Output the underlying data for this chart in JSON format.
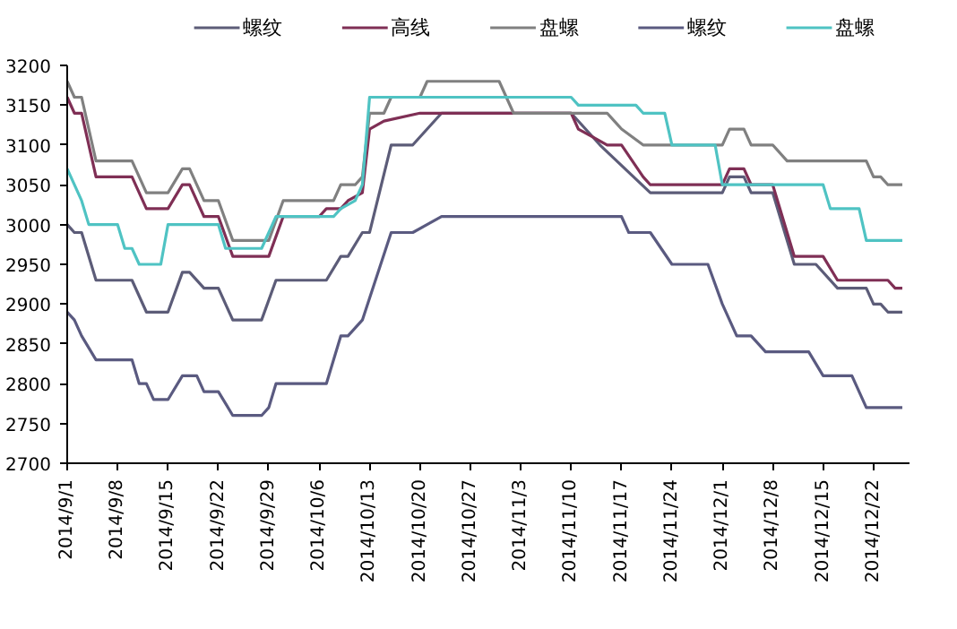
{
  "chart_data": {
    "type": "line",
    "series": [
      {
        "name": "螺纹",
        "color": "#5c5c78",
        "x": [
          "2014-09-01",
          "2014-09-02",
          "2014-09-03",
          "2014-09-05",
          "2014-09-10",
          "2014-09-12",
          "2014-09-15",
          "2014-09-17",
          "2014-09-18",
          "2014-09-20",
          "2014-09-22",
          "2014-09-24",
          "2014-09-28",
          "2014-09-30",
          "2014-10-07",
          "2014-10-09",
          "2014-10-10",
          "2014-10-12",
          "2014-10-13",
          "2014-10-16",
          "2014-10-19",
          "2014-10-23",
          "2014-11-10",
          "2014-11-12",
          "2014-11-14",
          "2014-11-21",
          "2014-12-01",
          "2014-12-02",
          "2014-12-04",
          "2014-12-05",
          "2014-12-08",
          "2014-12-11",
          "2014-12-14",
          "2014-12-17",
          "2014-12-21",
          "2014-12-22",
          "2014-12-23",
          "2014-12-24",
          "2014-12-26"
        ],
        "values": [
          3000,
          2990,
          2990,
          2930,
          2930,
          2890,
          2890,
          2940,
          2940,
          2920,
          2920,
          2880,
          2880,
          2930,
          2930,
          2960,
          2960,
          2990,
          2990,
          3100,
          3100,
          3140,
          3140,
          3120,
          3100,
          3040,
          3040,
          3060,
          3060,
          3040,
          3040,
          2950,
          2950,
          2920,
          2920,
          2900,
          2900,
          2890,
          2890
        ]
      },
      {
        "name": "高线",
        "color": "#7f2f55",
        "x": [
          "2014-09-01",
          "2014-09-02",
          "2014-09-03",
          "2014-09-05",
          "2014-09-10",
          "2014-09-12",
          "2014-09-15",
          "2014-09-17",
          "2014-09-18",
          "2014-09-20",
          "2014-09-22",
          "2014-09-24",
          "2014-09-29",
          "2014-10-01",
          "2014-10-06",
          "2014-10-07",
          "2014-10-09",
          "2014-10-10",
          "2014-10-12",
          "2014-10-13",
          "2014-10-15",
          "2014-10-20",
          "2014-11-10",
          "2014-11-11",
          "2014-11-13",
          "2014-11-15",
          "2014-11-17",
          "2014-11-20",
          "2014-11-21",
          "2014-12-01",
          "2014-12-02",
          "2014-12-04",
          "2014-12-05",
          "2014-12-08",
          "2014-12-11",
          "2014-12-15",
          "2014-12-17",
          "2014-12-24",
          "2014-12-25",
          "2014-12-26"
        ],
        "values": [
          3160,
          3140,
          3140,
          3060,
          3060,
          3020,
          3020,
          3050,
          3050,
          3010,
          3010,
          2960,
          2960,
          3010,
          3010,
          3020,
          3020,
          3030,
          3040,
          3120,
          3130,
          3140,
          3140,
          3120,
          3110,
          3100,
          3100,
          3060,
          3050,
          3050,
          3070,
          3070,
          3050,
          3050,
          2960,
          2960,
          2930,
          2930,
          2920,
          2920
        ]
      },
      {
        "name": "盘螺",
        "color": "#808080",
        "x": [
          "2014-09-01",
          "2014-09-02",
          "2014-09-03",
          "2014-09-05",
          "2014-09-10",
          "2014-09-12",
          "2014-09-15",
          "2014-09-17",
          "2014-09-18",
          "2014-09-20",
          "2014-09-22",
          "2014-09-24",
          "2014-09-29",
          "2014-10-01",
          "2014-10-08",
          "2014-10-09",
          "2014-10-11",
          "2014-10-12",
          "2014-10-13",
          "2014-10-15",
          "2014-10-16",
          "2014-10-20",
          "2014-10-21",
          "2014-10-31",
          "2014-11-02",
          "2014-11-15",
          "2014-11-16",
          "2014-11-17",
          "2014-11-20",
          "2014-12-01",
          "2014-12-02",
          "2014-12-04",
          "2014-12-05",
          "2014-12-08",
          "2014-12-10",
          "2014-12-21",
          "2014-12-22",
          "2014-12-23",
          "2014-12-24",
          "2014-12-26"
        ],
        "values": [
          3180,
          3160,
          3160,
          3080,
          3080,
          3040,
          3040,
          3070,
          3070,
          3030,
          3030,
          2980,
          2980,
          3030,
          3030,
          3050,
          3050,
          3060,
          3140,
          3140,
          3160,
          3160,
          3180,
          3180,
          3140,
          3140,
          3130,
          3120,
          3100,
          3100,
          3120,
          3120,
          3100,
          3100,
          3080,
          3080,
          3060,
          3060,
          3050,
          3050
        ]
      },
      {
        "name": "螺纹",
        "color": "#5a5a80",
        "x": [
          "2014-09-01",
          "2014-09-02",
          "2014-09-03",
          "2014-09-05",
          "2014-09-10",
          "2014-09-11",
          "2014-09-12",
          "2014-09-13",
          "2014-09-15",
          "2014-09-17",
          "2014-09-19",
          "2014-09-20",
          "2014-09-22",
          "2014-09-24",
          "2014-09-28",
          "2014-09-29",
          "2014-09-30",
          "2014-10-07",
          "2014-10-09",
          "2014-10-10",
          "2014-10-12",
          "2014-10-16",
          "2014-10-19",
          "2014-10-23",
          "2014-11-17",
          "2014-11-18",
          "2014-11-21",
          "2014-11-24",
          "2014-11-29",
          "2014-12-01",
          "2014-12-03",
          "2014-12-05",
          "2014-12-07",
          "2014-12-13",
          "2014-12-15",
          "2014-12-19",
          "2014-12-21",
          "2014-12-26"
        ],
        "values": [
          2890,
          2880,
          2860,
          2830,
          2830,
          2800,
          2800,
          2780,
          2780,
          2810,
          2810,
          2790,
          2790,
          2760,
          2760,
          2770,
          2800,
          2800,
          2860,
          2860,
          2880,
          2990,
          2990,
          3010,
          3010,
          2990,
          2990,
          2950,
          2950,
          2900,
          2860,
          2860,
          2840,
          2840,
          2810,
          2810,
          2770,
          2770
        ]
      },
      {
        "name": "盘螺",
        "color": "#4fc3c3",
        "x": [
          "2014-09-01",
          "2014-09-03",
          "2014-09-04",
          "2014-09-08",
          "2014-09-09",
          "2014-09-10",
          "2014-09-11",
          "2014-09-14",
          "2014-09-15",
          "2014-09-22",
          "2014-09-23",
          "2014-09-28",
          "2014-09-30",
          "2014-10-08",
          "2014-10-09",
          "2014-10-11",
          "2014-10-12",
          "2014-10-13",
          "2014-11-10",
          "2014-11-11",
          "2014-11-19",
          "2014-11-20",
          "2014-11-23",
          "2014-11-24",
          "2014-11-30",
          "2014-12-01",
          "2014-12-15",
          "2014-12-16",
          "2014-12-20",
          "2014-12-21",
          "2014-12-26"
        ],
        "values": [
          3070,
          3030,
          3000,
          3000,
          2970,
          2970,
          2950,
          2950,
          3000,
          3000,
          2970,
          2970,
          3010,
          3010,
          3020,
          3030,
          3050,
          3160,
          3160,
          3150,
          3150,
          3140,
          3140,
          3100,
          3100,
          3050,
          3050,
          3020,
          3020,
          2980,
          2980
        ]
      }
    ],
    "xlim": [
      "2014-09-01",
      "2014-12-27"
    ],
    "xticks": [
      {
        "value": "2014-09-01",
        "label": "2014/9/1"
      },
      {
        "value": "2014-09-08",
        "label": "2014/9/8"
      },
      {
        "value": "2014-09-15",
        "label": "2014/9/15"
      },
      {
        "value": "2014-09-22",
        "label": "2014/9/22"
      },
      {
        "value": "2014-09-29",
        "label": "2014/9/29"
      },
      {
        "value": "2014-10-06",
        "label": "2014/10/6"
      },
      {
        "value": "2014-10-13",
        "label": "2014/10/13"
      },
      {
        "value": "2014-10-20",
        "label": "2014/10/20"
      },
      {
        "value": "2014-10-27",
        "label": "2014/10/27"
      },
      {
        "value": "2014-11-03",
        "label": "2014/11/3"
      },
      {
        "value": "2014-11-10",
        "label": "2014/11/10"
      },
      {
        "value": "2014-11-17",
        "label": "2014/11/17"
      },
      {
        "value": "2014-11-24",
        "label": "2014/11/24"
      },
      {
        "value": "2014-12-01",
        "label": "2014/12/1"
      },
      {
        "value": "2014-12-08",
        "label": "2014/12/8"
      },
      {
        "value": "2014-12-15",
        "label": "2014/12/15"
      },
      {
        "value": "2014-12-22",
        "label": "2014/12/22"
      }
    ],
    "ylim": [
      2700,
      3200
    ],
    "yticks": [
      2700,
      2750,
      2800,
      2850,
      2900,
      2950,
      3000,
      3050,
      3100,
      3150,
      3200
    ],
    "grid": false,
    "legend": "top",
    "marker": "none",
    "line_style": "solid"
  }
}
